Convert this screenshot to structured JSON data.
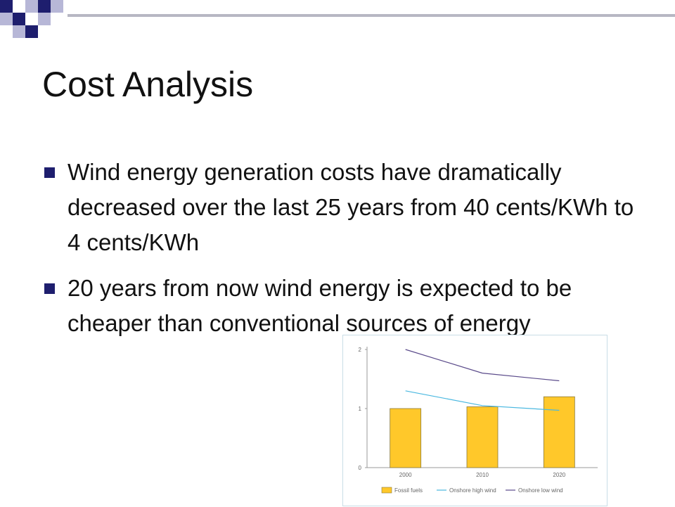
{
  "slide": {
    "title": "Cost Analysis",
    "bullets": [
      "Wind energy generation costs have dramatically decreased over the last 25 years from 40 cents/KWh to 4 cents/KWh",
      "20 years from now wind energy is expected to be cheaper than conventional sources of energy"
    ]
  },
  "colors": {
    "bullet": "#1e1e6e",
    "deco_dark": "#1e1e6e",
    "deco_light": "#b7b7d7"
  },
  "chart_data": {
    "type": "bar",
    "categories": [
      "2000",
      "2010",
      "2020"
    ],
    "ylim": [
      0,
      2
    ],
    "yticks": [
      "0",
      "1",
      "2"
    ],
    "series": [
      {
        "name": "Fossil fuels",
        "kind": "bar",
        "color": "#ffc82a",
        "values": [
          1.0,
          1.03,
          1.2
        ]
      },
      {
        "name": "Onshore high wind",
        "kind": "line",
        "color": "#4ab8e0",
        "values": [
          1.3,
          1.05,
          0.97
        ]
      },
      {
        "name": "Onshore low wind",
        "kind": "line",
        "color": "#5a4a8a",
        "values": [
          2.0,
          1.6,
          1.47
        ]
      }
    ],
    "legend_position": "bottom"
  }
}
